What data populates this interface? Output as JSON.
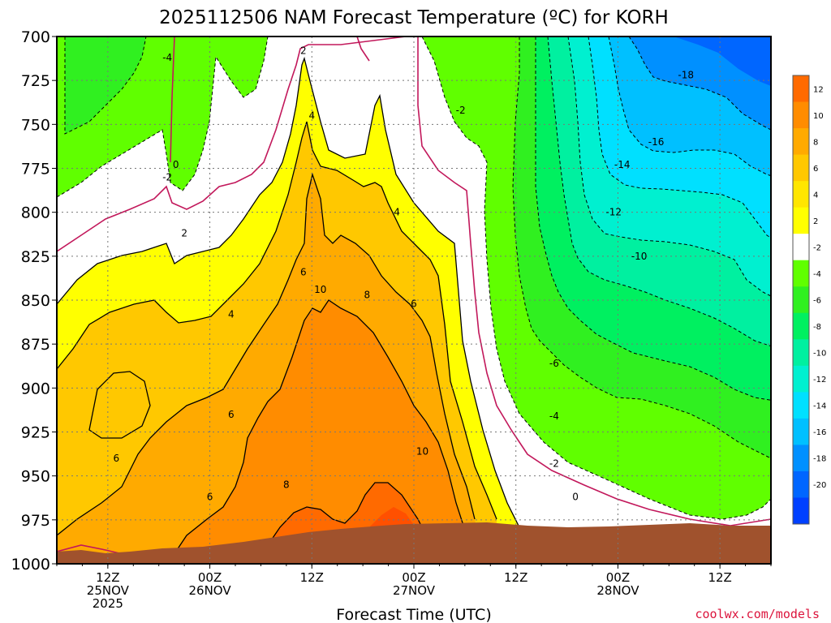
{
  "chart_data": {
    "type": "heatmap",
    "title": "2025112506 NAM Forecast Temperature (ºC) for KORH",
    "xlabel": "Forecast Time (UTC)",
    "ylabel": "",
    "credit": "coolwx.com/models",
    "y_ticks": [
      "700",
      "725",
      "750",
      "775",
      "800",
      "825",
      "850",
      "875",
      "900",
      "925",
      "950",
      "975",
      "1000"
    ],
    "ylim": [
      1000,
      700
    ],
    "x_ticks": [
      {
        "hour": 6,
        "line1": "12Z",
        "line2": "25NOV",
        "line3": "2025"
      },
      {
        "hour": 18,
        "line1": "00Z",
        "line2": "26NOV",
        "line3": ""
      },
      {
        "hour": 30,
        "line1": "12Z",
        "line2": "",
        "line3": ""
      },
      {
        "hour": 42,
        "line1": "00Z",
        "line2": "27NOV",
        "line3": ""
      },
      {
        "hour": 54,
        "line1": "12Z",
        "line2": "",
        "line3": ""
      },
      {
        "hour": 66,
        "line1": "00Z",
        "line2": "28NOV",
        "line3": ""
      },
      {
        "hour": 78,
        "line1": "12Z",
        "line2": "",
        "line3": ""
      }
    ],
    "xlim_hours": [
      0,
      84
    ],
    "colorbar": {
      "labels": [
        "12",
        "10",
        "8",
        "6",
        "4",
        "2",
        "-2",
        "-4",
        "-6",
        "-8",
        "-10",
        "-12",
        "-14",
        "-16",
        "-18",
        "-20"
      ],
      "colors": [
        "#ff6a00",
        "#ff8c00",
        "#ffaa00",
        "#ffc800",
        "#ffe600",
        "#ffff00",
        "#ffffff",
        "#60ff00",
        "#30f020",
        "#00f060",
        "#00f0a0",
        "#00f0d0",
        "#00e0ff",
        "#00c0ff",
        "#0090ff",
        "#0066ff",
        "#0040ff"
      ]
    },
    "contour_labels": [
      {
        "text": "-4",
        "hour": 13.0,
        "pres": 712
      },
      {
        "text": "2",
        "hour": 29.0,
        "pres": 708
      },
      {
        "text": "-18",
        "hour": 74.0,
        "pres": 722
      },
      {
        "text": "-2",
        "hour": 47.5,
        "pres": 742
      },
      {
        "text": "4",
        "hour": 30.0,
        "pres": 745
      },
      {
        "text": "-16",
        "hour": 70.5,
        "pres": 760
      },
      {
        "text": "0",
        "hour": 14.0,
        "pres": 773
      },
      {
        "text": "-2",
        "hour": 13.0,
        "pres": 780
      },
      {
        "text": "-14",
        "hour": 66.5,
        "pres": 773
      },
      {
        "text": "-12",
        "hour": 65.5,
        "pres": 800
      },
      {
        "text": "4",
        "hour": 40.0,
        "pres": 800
      },
      {
        "text": "2",
        "hour": 15.0,
        "pres": 812
      },
      {
        "text": "-10",
        "hour": 68.5,
        "pres": 825
      },
      {
        "text": "6",
        "hour": 29.0,
        "pres": 834
      },
      {
        "text": "10",
        "hour": 31.0,
        "pres": 844
      },
      {
        "text": "8",
        "hour": 36.5,
        "pres": 847
      },
      {
        "text": "6",
        "hour": 42.0,
        "pres": 852
      },
      {
        "text": "4",
        "hour": 20.5,
        "pres": 858
      },
      {
        "text": "-6",
        "hour": 58.5,
        "pres": 886
      },
      {
        "text": "6",
        "hour": 20.5,
        "pres": 915
      },
      {
        "text": "-4",
        "hour": 58.5,
        "pres": 916
      },
      {
        "text": "10",
        "hour": 43.0,
        "pres": 936
      },
      {
        "text": "6",
        "hour": 7.0,
        "pres": 940
      },
      {
        "text": "-2",
        "hour": 58.5,
        "pres": 943
      },
      {
        "text": "8",
        "hour": 27.0,
        "pres": 955
      },
      {
        "text": "6",
        "hour": 18.0,
        "pres": 962
      },
      {
        "text": "0",
        "hour": 61.0,
        "pres": 962
      }
    ]
  },
  "colors": {
    "frame": "#000000",
    "ground": "#a0522d",
    "credit": "#dc143c",
    "freezing_line": "#c2185b"
  }
}
